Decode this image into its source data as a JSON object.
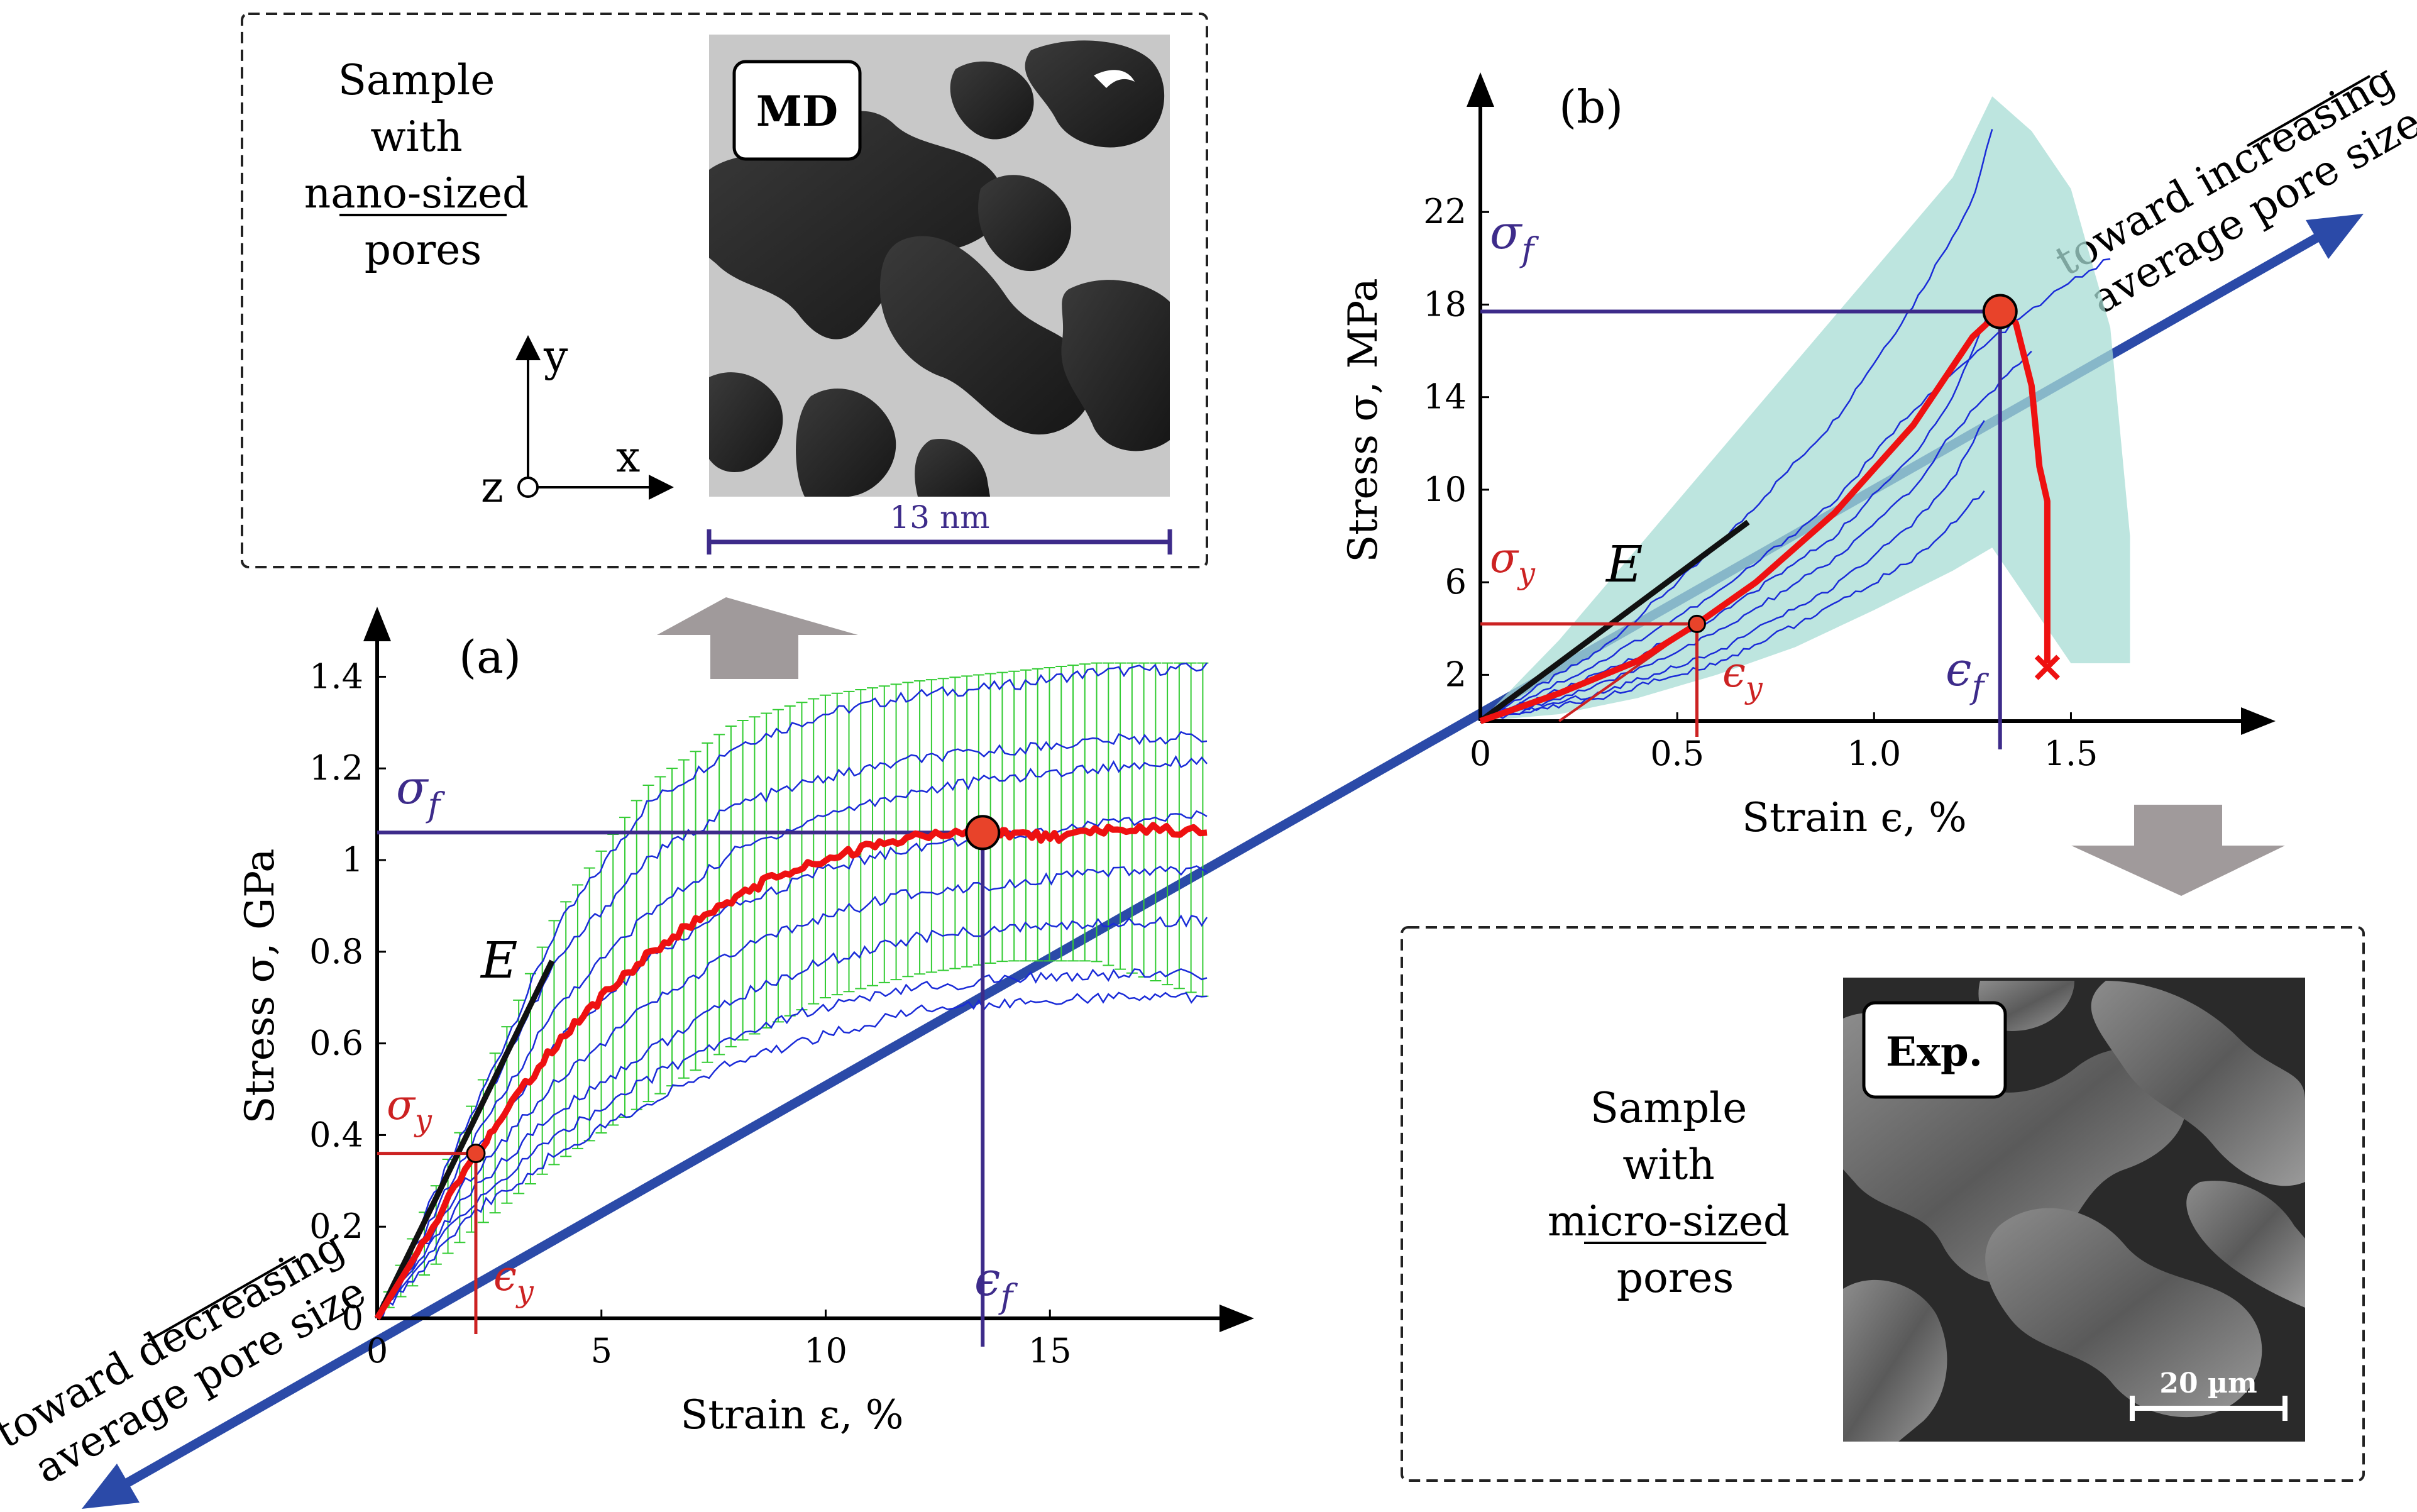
{
  "md_box": {
    "caption": [
      "Sample",
      "with",
      "nano-sized",
      "pores"
    ],
    "tag": "MD",
    "scale": "13 nm",
    "axes": {
      "y": "y",
      "x": "x",
      "z": "z"
    }
  },
  "exp_box": {
    "caption": [
      "Sample",
      "with",
      "micro-sized",
      "pores"
    ],
    "tag": "Exp.",
    "scale": "20 µm"
  },
  "arrow_labels": {
    "increasing": [
      "toward increasing",
      "average pore size"
    ],
    "increasing_underlined": "increasing",
    "decreasing": [
      "toward decreasing",
      "average pore size"
    ],
    "decreasing_underlined": "decreasing"
  },
  "colors": {
    "mean": "#ee1111",
    "curves": "#1a2bd8",
    "errbar": "#33cc33",
    "band": "#a7dcd4",
    "sigma": "#3d2b8a",
    "accent": "#cc2222",
    "axis_arrow": "#2b4aa8"
  },
  "chart_data": [
    {
      "id": "a",
      "panel_label": "(a)",
      "type": "line",
      "xlabel": "Strain ε, %",
      "ylabel": "Stress σ, GPa",
      "xlim": [
        0,
        18.5
      ],
      "ylim": [
        0,
        1.45
      ],
      "xticks": [
        0,
        5,
        10,
        15
      ],
      "yticks": [
        0,
        0.2,
        0.4,
        0.6,
        0.8,
        1,
        1.2,
        1.4
      ],
      "ytick_labels": [
        "0",
        "0.2",
        "0.4",
        "0.6",
        "0.8",
        "1",
        "1.2",
        "1.4"
      ],
      "mean_curve": {
        "name": "mean",
        "x": [
          0,
          1,
          2.2,
          3,
          4,
          5,
          6,
          7,
          8,
          9,
          10,
          11,
          12,
          13.5,
          14,
          15,
          16,
          17,
          18.5
        ],
        "y": [
          0,
          0.16,
          0.36,
          0.47,
          0.6,
          0.7,
          0.79,
          0.86,
          0.92,
          0.97,
          1.0,
          1.03,
          1.05,
          1.06,
          1.06,
          1.05,
          1.06,
          1.07,
          1.06
        ]
      },
      "series": [
        {
          "name": "sample 1",
          "x": [
            0,
            2,
            4,
            6,
            8,
            10,
            12,
            14,
            16,
            18.5
          ],
          "y": [
            0,
            0.42,
            0.85,
            1.12,
            1.25,
            1.32,
            1.36,
            1.38,
            1.41,
            1.42
          ]
        },
        {
          "name": "sample 2",
          "x": [
            0,
            2,
            4,
            6,
            8,
            10,
            12,
            14,
            16,
            18.5
          ],
          "y": [
            0,
            0.4,
            0.78,
            1.0,
            1.12,
            1.18,
            1.22,
            1.24,
            1.26,
            1.27
          ]
        },
        {
          "name": "sample 3",
          "x": [
            0,
            2,
            4,
            6,
            8,
            10,
            12,
            14,
            16,
            18.5
          ],
          "y": [
            0,
            0.36,
            0.68,
            0.88,
            1.02,
            1.1,
            1.15,
            1.18,
            1.2,
            1.22
          ]
        },
        {
          "name": "sample 4",
          "x": [
            0,
            2,
            4,
            6,
            8,
            10,
            12,
            14,
            16,
            18.5
          ],
          "y": [
            0,
            0.33,
            0.6,
            0.78,
            0.9,
            0.98,
            1.03,
            1.05,
            1.08,
            1.1
          ]
        },
        {
          "name": "sample 5",
          "x": [
            0,
            2,
            4,
            6,
            8,
            10,
            12,
            14,
            16,
            18.5
          ],
          "y": [
            0,
            0.3,
            0.52,
            0.68,
            0.8,
            0.88,
            0.93,
            0.95,
            0.97,
            0.98
          ]
        },
        {
          "name": "sample 6",
          "x": [
            0,
            2,
            4,
            6,
            8,
            10,
            12,
            14,
            16,
            18.5
          ],
          "y": [
            0,
            0.27,
            0.45,
            0.58,
            0.7,
            0.78,
            0.83,
            0.85,
            0.86,
            0.87
          ]
        },
        {
          "name": "sample 7",
          "x": [
            0,
            2,
            4,
            6,
            8,
            10,
            12,
            14,
            16,
            18.5
          ],
          "y": [
            0,
            0.24,
            0.4,
            0.52,
            0.62,
            0.68,
            0.72,
            0.74,
            0.75,
            0.75
          ]
        },
        {
          "name": "sample 8",
          "x": [
            0,
            2,
            4,
            6,
            8,
            10,
            12,
            14,
            16,
            18.5
          ],
          "y": [
            0,
            0.22,
            0.36,
            0.47,
            0.56,
            0.62,
            0.67,
            0.69,
            0.7,
            0.7
          ]
        }
      ],
      "error_band": {
        "x": [
          0,
          2,
          4,
          6,
          8,
          10,
          12,
          14,
          16,
          18.5
        ],
        "lower": [
          0,
          0.18,
          0.34,
          0.47,
          0.6,
          0.7,
          0.75,
          0.78,
          0.78,
          0.7
        ],
        "upper": [
          0,
          0.44,
          0.88,
          1.16,
          1.3,
          1.36,
          1.39,
          1.41,
          1.43,
          1.43
        ]
      },
      "modulus_line": {
        "x": [
          0,
          3.9
        ],
        "y": [
          0,
          0.78
        ]
      },
      "yield_point": {
        "x": 2.2,
        "y": 0.36
      },
      "failure_point": {
        "x": 13.5,
        "y": 1.06
      },
      "labels": {
        "E": "E",
        "sigma": "σ",
        "epsilon": "ϵ",
        "yield_sub": "y",
        "failure_sub": "f"
      }
    },
    {
      "id": "b",
      "panel_label": "(b)",
      "type": "line",
      "xlabel": "Strain ϵ, %",
      "ylabel": "Stress σ, MPa",
      "xlim": [
        0,
        1.9
      ],
      "ylim": [
        0,
        26
      ],
      "xticks": [
        0,
        0.5,
        1.0,
        1.5
      ],
      "xtick_labels": [
        "0",
        "0.5",
        "1.0",
        "1.5"
      ],
      "yticks": [
        2,
        6,
        10,
        14,
        18,
        22
      ],
      "mean_curve": {
        "name": "mean",
        "x": [
          0,
          0.2,
          0.4,
          0.55,
          0.7,
          0.9,
          1.1,
          1.25,
          1.32,
          1.36,
          1.4,
          1.42,
          1.44,
          1.44
        ],
        "y": [
          0,
          1.2,
          2.6,
          4.2,
          6.0,
          9.0,
          12.8,
          16.6,
          17.7,
          17.2,
          14.5,
          11.0,
          9.5,
          2.5
        ]
      },
      "failure_end": {
        "x": 1.44,
        "y": 2.5
      },
      "series": [
        {
          "name": "sample 1",
          "x": [
            0,
            0.3,
            0.6,
            0.9,
            1.1,
            1.25,
            1.3
          ],
          "y": [
            0,
            3,
            7.5,
            13,
            18,
            22.5,
            25.5
          ]
        },
        {
          "name": "sample 2",
          "x": [
            0,
            0.3,
            0.6,
            0.9,
            1.1,
            1.3,
            1.5,
            1.6
          ],
          "y": [
            0,
            2.5,
            5.5,
            9.5,
            13.5,
            16.5,
            19,
            20
          ]
        },
        {
          "name": "sample 3",
          "x": [
            0,
            0.3,
            0.6,
            0.9,
            1.1,
            1.2,
            1.3
          ],
          "y": [
            0,
            2,
            4.5,
            8,
            11.5,
            14,
            18
          ]
        },
        {
          "name": "sample 4",
          "x": [
            0,
            0.3,
            0.6,
            0.9,
            1.1,
            1.2,
            1.4
          ],
          "y": [
            0,
            1.5,
            3.8,
            7,
            10,
            12.5,
            16
          ]
        },
        {
          "name": "sample 5",
          "x": [
            0,
            0.3,
            0.6,
            0.9,
            1.1,
            1.2,
            1.28
          ],
          "y": [
            0,
            1.2,
            3,
            5.8,
            8.5,
            10.5,
            13
          ]
        },
        {
          "name": "sample 6",
          "x": [
            0,
            0.3,
            0.6,
            0.9,
            1.1,
            1.2,
            1.28
          ],
          "y": [
            0,
            1,
            2.5,
            5,
            7,
            8.5,
            10
          ]
        }
      ],
      "error_band": {
        "x": [
          0,
          0.2,
          0.4,
          0.6,
          0.8,
          1.0,
          1.2,
          1.3,
          1.4,
          1.5,
          1.6,
          1.65
        ],
        "lower": [
          0,
          0.3,
          1.0,
          2.0,
          3.2,
          4.8,
          6.5,
          7.5,
          5.0,
          2.5,
          2.5,
          2.5
        ],
        "upper": [
          0,
          3.5,
          7.5,
          11.5,
          15.5,
          19.5,
          23.5,
          27.0,
          25.5,
          23.0,
          17.0,
          8.0
        ]
      },
      "modulus_line": {
        "x": [
          0,
          0.68
        ],
        "y": [
          0,
          8.6
        ]
      },
      "yield_point": {
        "x": 0.55,
        "y": 4.2
      },
      "failure_point": {
        "x": 1.32,
        "y": 17.7
      },
      "labels": {
        "E": "E",
        "sigma": "σ",
        "epsilon": "ϵ",
        "yield_sub": "y",
        "failure_sub": "f",
        "end_mark": "✕"
      }
    }
  ]
}
